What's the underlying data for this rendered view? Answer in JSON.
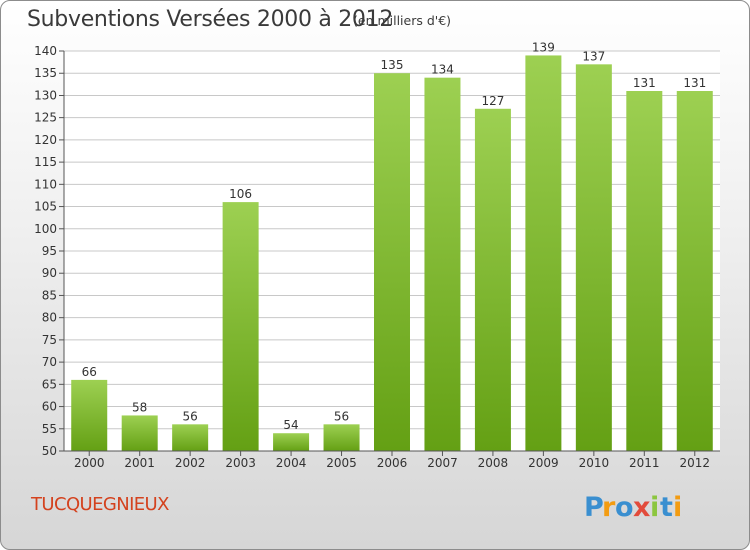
{
  "title": "Subventions Versées 2000 à 2012",
  "subtitle": "(en milliers d'€)",
  "commune": "TUCQUEGNIEUX",
  "logo_text": "Proxiti",
  "colors": {
    "bar_light": "#9dd052",
    "bar_dark": "#64a014",
    "commune_text": "#d4421e",
    "grid": "#c8c8c8"
  },
  "chart_data": {
    "type": "bar",
    "categories": [
      "2000",
      "2001",
      "2002",
      "2003",
      "2004",
      "2005",
      "2006",
      "2007",
      "2008",
      "2009",
      "2010",
      "2011",
      "2012"
    ],
    "values": [
      66,
      58,
      56,
      106,
      54,
      56,
      135,
      134,
      127,
      139,
      137,
      131,
      131
    ],
    "ylim": [
      50,
      140
    ],
    "yticks": [
      50,
      55,
      60,
      65,
      70,
      75,
      80,
      85,
      90,
      95,
      100,
      105,
      110,
      115,
      120,
      125,
      130,
      135,
      140
    ],
    "grid": true,
    "legend": "none"
  }
}
